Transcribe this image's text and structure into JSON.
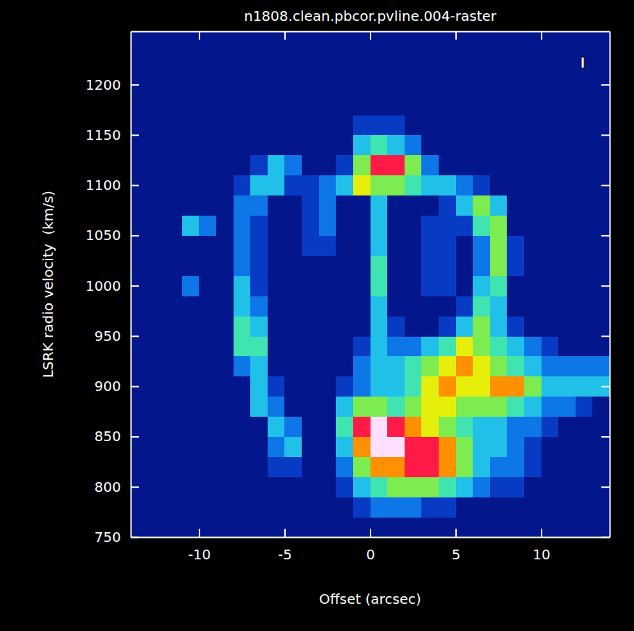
{
  "chart_data": {
    "type": "heatmap",
    "title": "n1808.clean.pbcor.pvline.004-raster",
    "xlabel": "Offset (arcsec)",
    "ylabel": "LSRK radio velocity  (km/s)",
    "annotation": "I",
    "xlim": [
      -14,
      14
    ],
    "ylim": [
      750,
      1253
    ],
    "xticks": [
      -10,
      -5,
      0,
      5,
      10
    ],
    "yticks": [
      750,
      800,
      850,
      900,
      950,
      1000,
      1050,
      1100,
      1150,
      1200
    ],
    "zlim": [
      0,
      10
    ],
    "x": [
      -13.5,
      -12.5,
      -11.5,
      -10.5,
      -9.5,
      -8.5,
      -7.5,
      -6.5,
      -5.5,
      -4.5,
      -3.5,
      -2.5,
      -1.5,
      -0.5,
      0.5,
      1.5,
      2.5,
      3.5,
      4.5,
      5.5,
      6.5,
      7.5,
      8.5,
      9.5,
      10.5,
      11.5,
      12.5,
      13.5
    ],
    "y": [
      760,
      780,
      800,
      820,
      840,
      860,
      880,
      900,
      920,
      940,
      960,
      980,
      1000,
      1020,
      1040,
      1060,
      1080,
      1100,
      1120,
      1140,
      1160,
      1180,
      1200,
      1220,
      1240
    ],
    "values": [
      [
        1,
        1,
        1,
        1,
        1,
        1,
        1,
        1,
        1,
        1,
        1,
        1,
        1,
        1,
        1,
        1,
        1,
        1,
        1,
        1,
        1,
        1,
        1,
        1,
        1,
        1,
        1,
        1
      ],
      [
        1,
        1,
        1,
        1,
        1,
        1,
        1,
        1,
        1,
        1,
        1,
        1,
        1,
        2,
        3,
        3,
        3,
        2,
        2,
        1,
        1,
        1,
        1,
        1,
        1,
        1,
        1,
        1
      ],
      [
        1,
        1,
        1,
        1,
        1,
        1,
        1,
        1,
        1,
        1,
        1,
        1,
        2,
        4,
        5,
        6,
        6,
        6,
        5,
        4,
        3,
        2,
        2,
        1,
        1,
        1,
        1,
        1
      ],
      [
        1,
        1,
        1,
        1,
        1,
        1,
        1,
        1,
        2,
        2,
        1,
        1,
        3,
        6,
        8,
        8,
        9,
        9,
        8,
        6,
        4,
        3,
        3,
        2,
        1,
        1,
        1,
        1
      ],
      [
        1,
        1,
        1,
        1,
        1,
        1,
        1,
        1,
        3,
        4,
        1,
        1,
        4,
        8,
        10,
        10,
        9,
        9,
        8,
        6,
        4,
        4,
        3,
        2,
        1,
        1,
        1,
        1
      ],
      [
        1,
        1,
        1,
        1,
        1,
        1,
        1,
        1,
        4,
        3,
        1,
        1,
        5,
        9,
        10,
        9,
        8,
        7,
        6,
        5,
        4,
        4,
        3,
        3,
        2,
        1,
        1,
        1
      ],
      [
        1,
        1,
        1,
        1,
        1,
        1,
        1,
        4,
        3,
        1,
        1,
        1,
        4,
        6,
        6,
        5,
        6,
        7,
        7,
        6,
        6,
        6,
        5,
        4,
        3,
        3,
        2,
        1
      ],
      [
        1,
        1,
        1,
        1,
        1,
        1,
        1,
        4,
        2,
        1,
        1,
        1,
        2,
        3,
        4,
        4,
        5,
        7,
        8,
        7,
        7,
        8,
        8,
        6,
        4,
        4,
        4,
        4
      ],
      [
        1,
        1,
        1,
        1,
        1,
        1,
        3,
        4,
        1,
        1,
        1,
        1,
        1,
        3,
        4,
        4,
        5,
        6,
        7,
        8,
        7,
        6,
        5,
        4,
        3,
        3,
        3,
        3
      ],
      [
        1,
        1,
        1,
        1,
        1,
        1,
        5,
        5,
        1,
        1,
        1,
        1,
        1,
        2,
        4,
        3,
        3,
        4,
        5,
        7,
        6,
        5,
        4,
        3,
        2,
        1,
        1,
        1
      ],
      [
        1,
        1,
        1,
        1,
        1,
        1,
        5,
        4,
        1,
        1,
        1,
        1,
        1,
        1,
        4,
        2,
        1,
        1,
        2,
        4,
        6,
        4,
        2,
        1,
        1,
        1,
        1,
        1
      ],
      [
        1,
        1,
        1,
        1,
        1,
        1,
        4,
        3,
        1,
        1,
        1,
        1,
        1,
        1,
        4,
        1,
        1,
        1,
        1,
        2,
        5,
        4,
        1,
        1,
        1,
        1,
        1,
        1
      ],
      [
        1,
        1,
        1,
        3,
        1,
        1,
        4,
        2,
        1,
        1,
        1,
        1,
        1,
        1,
        5,
        1,
        1,
        2,
        2,
        1,
        4,
        5,
        1,
        1,
        1,
        1,
        1,
        1
      ],
      [
        1,
        1,
        1,
        1,
        1,
        1,
        3,
        2,
        1,
        1,
        1,
        1,
        1,
        1,
        5,
        1,
        1,
        2,
        2,
        1,
        3,
        6,
        2,
        1,
        1,
        1,
        1,
        1
      ],
      [
        1,
        1,
        1,
        1,
        1,
        1,
        3,
        2,
        1,
        1,
        2,
        2,
        1,
        1,
        4,
        1,
        1,
        2,
        2,
        1,
        3,
        6,
        2,
        1,
        1,
        1,
        1,
        1
      ],
      [
        1,
        1,
        1,
        4,
        3,
        1,
        3,
        2,
        1,
        1,
        2,
        3,
        1,
        1,
        4,
        1,
        1,
        2,
        2,
        2,
        5,
        6,
        1,
        1,
        1,
        1,
        1,
        1
      ],
      [
        1,
        1,
        1,
        1,
        1,
        1,
        3,
        3,
        1,
        1,
        2,
        3,
        1,
        1,
        4,
        1,
        1,
        1,
        2,
        4,
        6,
        4,
        1,
        1,
        1,
        1,
        1,
        1
      ],
      [
        1,
        1,
        1,
        1,
        1,
        1,
        2,
        4,
        4,
        2,
        2,
        3,
        4,
        7,
        6,
        6,
        5,
        4,
        4,
        3,
        2,
        1,
        1,
        1,
        1,
        1,
        1,
        1
      ],
      [
        1,
        1,
        1,
        1,
        1,
        1,
        1,
        2,
        4,
        3,
        1,
        1,
        2,
        6,
        9,
        9,
        6,
        3,
        1,
        1,
        1,
        1,
        1,
        1,
        1,
        1,
        1,
        1
      ],
      [
        1,
        1,
        1,
        1,
        1,
        1,
        1,
        1,
        1,
        1,
        1,
        1,
        1,
        4,
        5,
        4,
        3,
        1,
        1,
        1,
        1,
        1,
        1,
        1,
        1,
        1,
        1,
        1
      ],
      [
        1,
        1,
        1,
        1,
        1,
        1,
        1,
        1,
        1,
        1,
        1,
        1,
        1,
        2,
        2,
        2,
        1,
        1,
        1,
        1,
        1,
        1,
        1,
        1,
        1,
        1,
        1,
        1
      ],
      [
        1,
        1,
        1,
        1,
        1,
        1,
        1,
        1,
        1,
        1,
        1,
        1,
        1,
        1,
        1,
        1,
        1,
        1,
        1,
        1,
        1,
        1,
        1,
        1,
        1,
        1,
        1,
        1
      ],
      [
        1,
        1,
        1,
        1,
        1,
        1,
        1,
        1,
        1,
        1,
        1,
        1,
        1,
        1,
        1,
        1,
        1,
        1,
        1,
        1,
        1,
        1,
        1,
        1,
        1,
        1,
        1,
        1
      ],
      [
        1,
        1,
        1,
        1,
        1,
        1,
        1,
        1,
        1,
        1,
        1,
        1,
        1,
        1,
        1,
        1,
        1,
        1,
        1,
        1,
        1,
        1,
        1,
        1,
        1,
        1,
        1,
        1
      ],
      [
        1,
        1,
        1,
        1,
        1,
        1,
        1,
        1,
        1,
        1,
        1,
        1,
        1,
        1,
        1,
        1,
        1,
        1,
        1,
        1,
        1,
        1,
        1,
        1,
        1,
        1,
        1,
        1
      ]
    ]
  }
}
